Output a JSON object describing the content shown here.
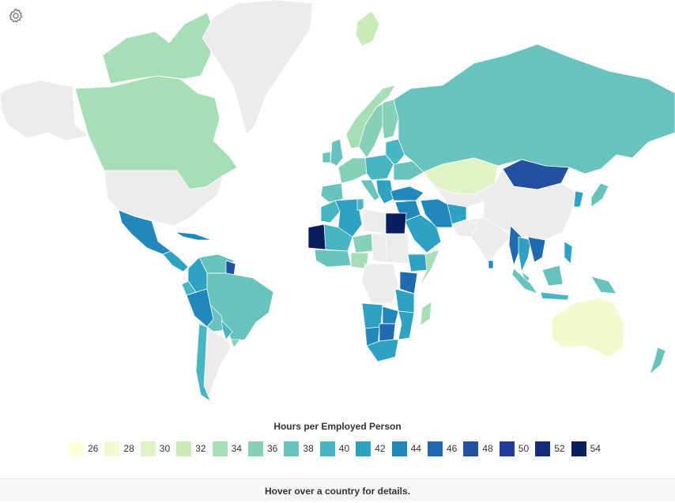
{
  "legend": {
    "title": "Hours per Employed Person",
    "items": [
      {
        "value": "26",
        "color": "#ffffd9"
      },
      {
        "value": "28",
        "color": "#f2f9cc"
      },
      {
        "value": "30",
        "color": "#e0f3c6"
      },
      {
        "value": "32",
        "color": "#c9eab9"
      },
      {
        "value": "34",
        "color": "#a8deb6"
      },
      {
        "value": "36",
        "color": "#86d0ba"
      },
      {
        "value": "38",
        "color": "#68c3bd"
      },
      {
        "value": "40",
        "color": "#47b6c2"
      },
      {
        "value": "42",
        "color": "#2fa2c3"
      },
      {
        "value": "44",
        "color": "#2188bb"
      },
      {
        "value": "46",
        "color": "#206bb0"
      },
      {
        "value": "48",
        "color": "#2350a0"
      },
      {
        "value": "50",
        "color": "#21399a"
      },
      {
        "value": "52",
        "color": "#162b80"
      },
      {
        "value": "54",
        "color": "#0b1e5f"
      }
    ]
  },
  "no_data_color": "#ececec",
  "footer": {
    "text": "Hover over a country for details."
  },
  "settings": {
    "icon": "gear-icon"
  },
  "regions": [
    {
      "name": "Alaska",
      "level": null
    },
    {
      "name": "Canada",
      "level": 34
    },
    {
      "name": "Canadian Arctic Islands",
      "level": 34
    },
    {
      "name": "Greenland",
      "level": null
    },
    {
      "name": "Iceland",
      "level": 32
    },
    {
      "name": "United States",
      "level": null
    },
    {
      "name": "Mexico",
      "level": 44
    },
    {
      "name": "Central America",
      "level": 42
    },
    {
      "name": "Cuba",
      "level": 44
    },
    {
      "name": "Venezuela",
      "level": 38
    },
    {
      "name": "Colombia",
      "level": 42
    },
    {
      "name": "Guyana",
      "level": 48
    },
    {
      "name": "Ecuador",
      "level": 40
    },
    {
      "name": "Peru",
      "level": 44
    },
    {
      "name": "Brazil",
      "level": 38
    },
    {
      "name": "Bolivia",
      "level": 38
    },
    {
      "name": "Paraguay",
      "level": 40
    },
    {
      "name": "Uruguay",
      "level": 36
    },
    {
      "name": "Argentina",
      "level": null
    },
    {
      "name": "Chile",
      "level": 40
    },
    {
      "name": "Norway",
      "level": 34
    },
    {
      "name": "Sweden",
      "level": 36
    },
    {
      "name": "Finland",
      "level": 36
    },
    {
      "name": "United Kingdom",
      "level": 38
    },
    {
      "name": "Ireland",
      "level": 38
    },
    {
      "name": "Western Europe",
      "level": 36
    },
    {
      "name": "Iberia",
      "level": 38
    },
    {
      "name": "Central Europe",
      "level": 40
    },
    {
      "name": "Italy",
      "level": 38
    },
    {
      "name": "Balkans",
      "level": 42
    },
    {
      "name": "Baltics and Belarus",
      "level": 40
    },
    {
      "name": "Ukraine",
      "level": 38
    },
    {
      "name": "Russia",
      "level": 38
    },
    {
      "name": "Turkey",
      "level": 44
    },
    {
      "name": "Kazakhstan",
      "level": 30
    },
    {
      "name": "Central Asia",
      "level": null
    },
    {
      "name": "Mongolia",
      "level": 48
    },
    {
      "name": "China",
      "level": null
    },
    {
      "name": "Korean Peninsula",
      "level": 42
    },
    {
      "name": "Japan",
      "level": 38
    },
    {
      "name": "Middle East",
      "level": 44
    },
    {
      "name": "Saudi Arabia",
      "level": 42
    },
    {
      "name": "Iran",
      "level": 44
    },
    {
      "name": "Afghanistan",
      "level": 42
    },
    {
      "name": "Pakistan",
      "level": null
    },
    {
      "name": "India",
      "level": null
    },
    {
      "name": "Sri Lanka",
      "level": 44
    },
    {
      "name": "Myanmar",
      "level": 46
    },
    {
      "name": "Thailand",
      "level": 42
    },
    {
      "name": "Vietnam and Laos",
      "level": 46
    },
    {
      "name": "Malaysia",
      "level": 38
    },
    {
      "name": "Indonesia (Sumatra)",
      "level": 38
    },
    {
      "name": "Indonesia (Java)",
      "level": 40
    },
    {
      "name": "Borneo",
      "level": 38
    },
    {
      "name": "Philippines",
      "level": 42
    },
    {
      "name": "Papua New Guinea",
      "level": 38
    },
    {
      "name": "Australia",
      "level": 28
    },
    {
      "name": "New Zealand",
      "level": 38
    },
    {
      "name": "Morocco",
      "level": 40
    },
    {
      "name": "Algeria",
      "level": 42
    },
    {
      "name": "Tunisia",
      "level": 40
    },
    {
      "name": "Libya",
      "level": null
    },
    {
      "name": "Egypt",
      "level": 54
    },
    {
      "name": "Mauritania",
      "level": 54
    },
    {
      "name": "Mali",
      "level": 40
    },
    {
      "name": "Niger",
      "level": 36
    },
    {
      "name": "Chad",
      "level": null
    },
    {
      "name": "Sudan",
      "level": null
    },
    {
      "name": "West Africa",
      "level": 38
    },
    {
      "name": "Nigeria",
      "level": 34
    },
    {
      "name": "Central Africa",
      "level": null
    },
    {
      "name": "Ethiopia",
      "level": 42
    },
    {
      "name": "Somalia",
      "level": 34
    },
    {
      "name": "Kenya",
      "level": 46
    },
    {
      "name": "Tanzania",
      "level": 42
    },
    {
      "name": "Angola",
      "level": 42
    },
    {
      "name": "Zambia",
      "level": 44
    },
    {
      "name": "Mozambique",
      "level": 42
    },
    {
      "name": "Namibia",
      "level": 44
    },
    {
      "name": "Botswana",
      "level": 46
    },
    {
      "name": "South Africa",
      "level": 42
    },
    {
      "name": "Madagascar",
      "level": 34
    }
  ]
}
